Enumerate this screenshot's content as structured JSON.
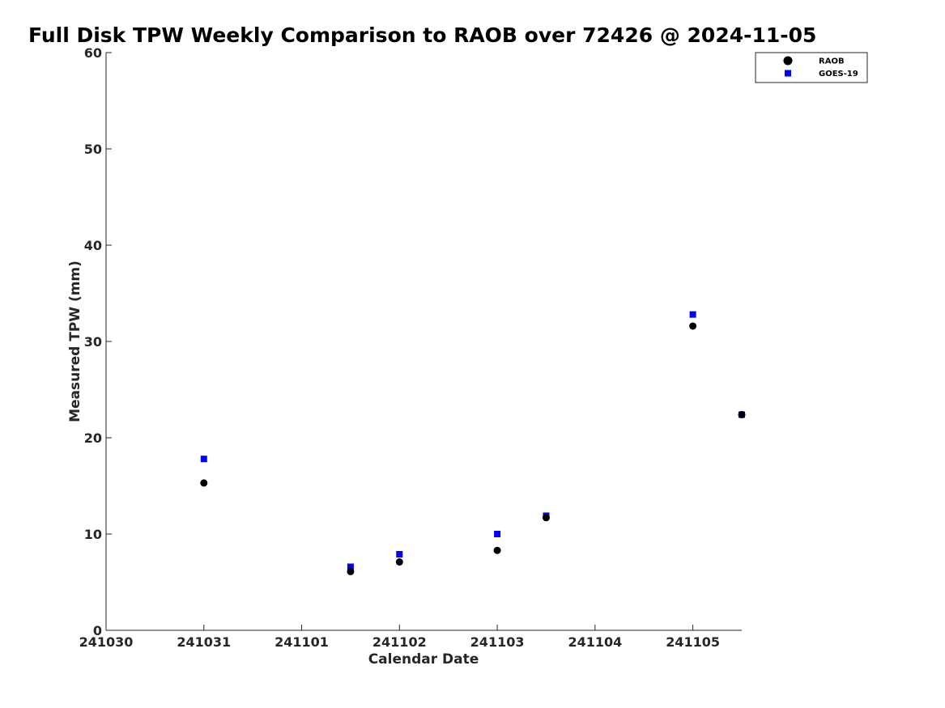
{
  "chart_data": {
    "type": "scatter",
    "title": "Full Disk TPW Weekly Comparison to RAOB over 72426 @ 2024-11-05",
    "xlabel": "Calendar Date",
    "ylabel": "Measured TPW (mm)",
    "x_tick_labels": [
      "241030",
      "241031",
      "241101",
      "241102",
      "241103",
      "241104",
      "241105"
    ],
    "y_tick_labels": [
      "0",
      "10",
      "20",
      "30",
      "40",
      "50",
      "60"
    ],
    "xlim": [
      "2024-10-30 00:00",
      "2024-11-05 12:00"
    ],
    "ylim": [
      0,
      60
    ],
    "grid": false,
    "legend_position": "top-right",
    "series": [
      {
        "name": "RAOB",
        "marker": "circle",
        "color": "#000000",
        "points": [
          {
            "x": "2024-10-31 00:00",
            "y": 15.3
          },
          {
            "x": "2024-11-01 12:00",
            "y": 6.1
          },
          {
            "x": "2024-11-02 00:00",
            "y": 7.1
          },
          {
            "x": "2024-11-03 00:00",
            "y": 8.3
          },
          {
            "x": "2024-11-03 12:00",
            "y": 11.7
          },
          {
            "x": "2024-11-05 00:00",
            "y": 31.6
          },
          {
            "x": "2024-11-05 12:00",
            "y": 22.4
          }
        ]
      },
      {
        "name": "GOES-19",
        "marker": "square",
        "color": "#0000ff",
        "points": [
          {
            "x": "2024-10-31 00:00",
            "y": 17.8
          },
          {
            "x": "2024-11-01 12:00",
            "y": 6.6
          },
          {
            "x": "2024-11-02 00:00",
            "y": 7.9
          },
          {
            "x": "2024-11-03 00:00",
            "y": 10.0
          },
          {
            "x": "2024-11-03 12:00",
            "y": 11.9
          },
          {
            "x": "2024-11-05 00:00",
            "y": 32.8
          },
          {
            "x": "2024-11-05 12:00",
            "y": 22.4
          }
        ]
      }
    ]
  }
}
